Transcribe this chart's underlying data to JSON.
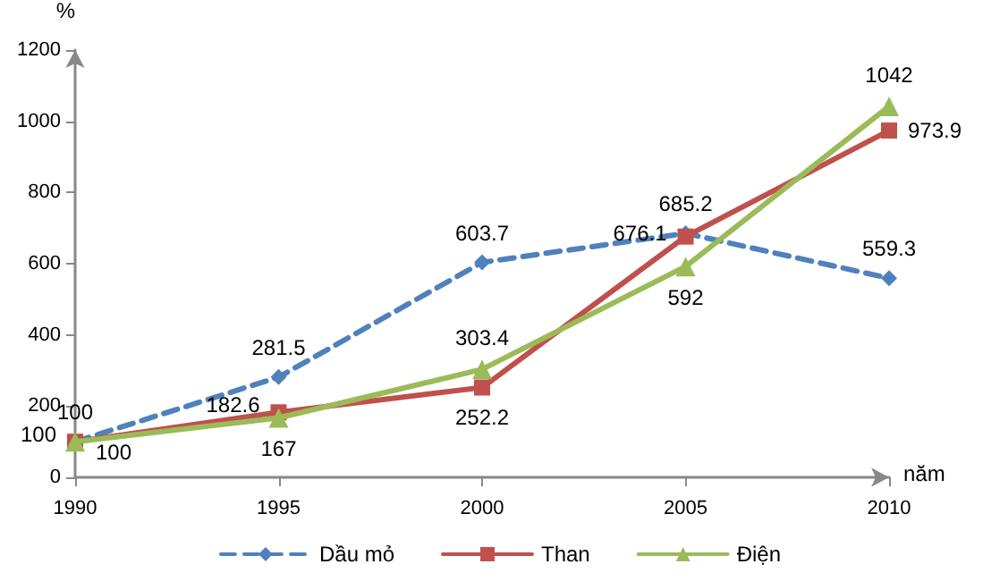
{
  "chart_data": {
    "type": "line",
    "xlabel": "năm",
    "ylabel": "%",
    "x": [
      1990,
      1995,
      2000,
      2005,
      2010
    ],
    "series": [
      {
        "name": "Dầu mỏ",
        "color": "#4f81bd",
        "marker": "diamond",
        "line_style": "dashed",
        "values": [
          100,
          281.5,
          603.7,
          685.2,
          559.3
        ]
      },
      {
        "name": "Than",
        "color": "#c0504d",
        "marker": "square",
        "line_style": "solid",
        "values": [
          100,
          182.6,
          252.2,
          676.1,
          973.9
        ]
      },
      {
        "name": "Điện",
        "color": "#9bbb59",
        "marker": "triangle",
        "line_style": "solid",
        "values": [
          100,
          167,
          303.4,
          592,
          1042
        ]
      }
    ],
    "xlim": [
      1990,
      2010
    ],
    "xticks": [
      1990,
      1995,
      2000,
      2005,
      2010
    ],
    "ylim": [
      0,
      1200
    ],
    "yticks": [
      0,
      200,
      400,
      600,
      800,
      1000,
      1200
    ],
    "grid": false,
    "legend": "bottom",
    "data_labels": true
  }
}
